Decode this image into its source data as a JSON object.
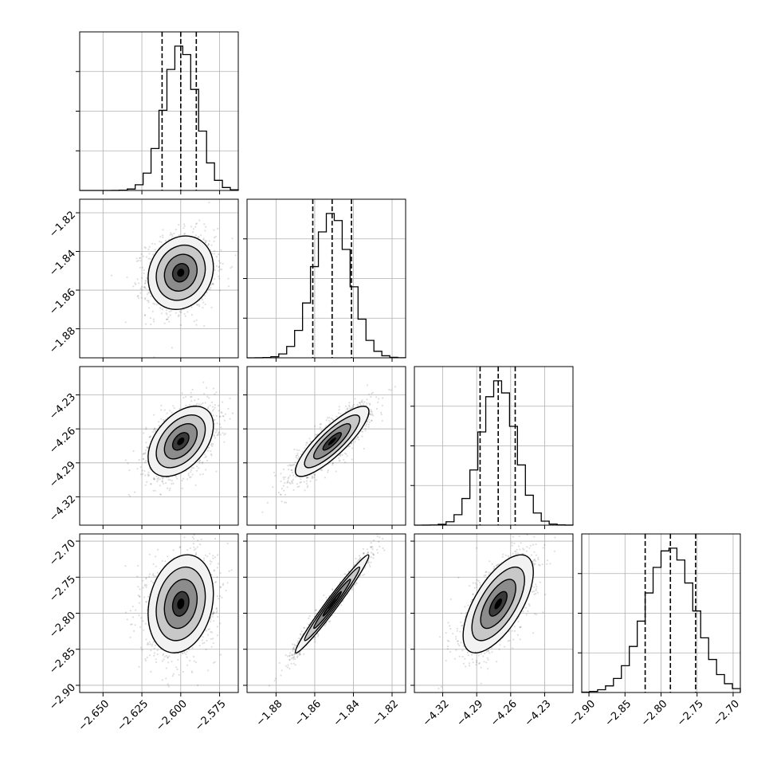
{
  "chart_data": {
    "type": "corner",
    "grid": true,
    "parameters": [
      {
        "range": [
          -2.665,
          -2.563
        ],
        "ticks": [
          -2.65,
          -2.625,
          -2.6,
          -2.575
        ],
        "tick_labels": [
          "−2.650",
          "−2.625",
          "−2.600",
          "−2.575"
        ],
        "quantiles": [
          -2.612,
          -2.6,
          -2.59
        ],
        "median": -2.6,
        "sigma": 0.0105
      },
      {
        "range": [
          -1.895,
          -1.813
        ],
        "ticks": [
          -1.88,
          -1.86,
          -1.84,
          -1.82
        ],
        "tick_labels": [
          "−1.88",
          "−1.86",
          "−1.84",
          "−1.82"
        ],
        "quantiles": [
          -1.861,
          -1.851,
          -1.841
        ],
        "median": -1.851,
        "sigma": 0.0095
      },
      {
        "range": [
          -4.345,
          -4.205
        ],
        "ticks": [
          -4.32,
          -4.29,
          -4.26,
          -4.23
        ],
        "tick_labels": [
          "−4.32",
          "−4.29",
          "−4.26",
          "−4.23"
        ],
        "quantiles": [
          -4.287,
          -4.271,
          -4.256
        ],
        "median": -4.271,
        "sigma": 0.0155
      },
      {
        "range": [
          -2.91,
          -2.69
        ],
        "ticks": [
          -2.9,
          -2.85,
          -2.8,
          -2.75,
          -2.7
        ],
        "tick_labels": [
          "−2.90",
          "−2.85",
          "−2.80",
          "−2.75",
          "−2.70"
        ],
        "quantiles": [
          -2.822,
          -2.787,
          -2.752
        ],
        "median": -2.787,
        "sigma": 0.034
      }
    ],
    "correlations": [
      {
        "pair": [
          0,
          1
        ],
        "rho": 0.15
      },
      {
        "pair": [
          0,
          2
        ],
        "rho": 0.45
      },
      {
        "pair": [
          1,
          2
        ],
        "rho": 0.85
      },
      {
        "pair": [
          0,
          3
        ],
        "rho": 0.2
      },
      {
        "pair": [
          1,
          3
        ],
        "rho": 0.98
      },
      {
        "pair": [
          2,
          3
        ],
        "rho": 0.65
      }
    ],
    "histogram_bins": 20,
    "scatter_points_per_panel": 1400
  }
}
